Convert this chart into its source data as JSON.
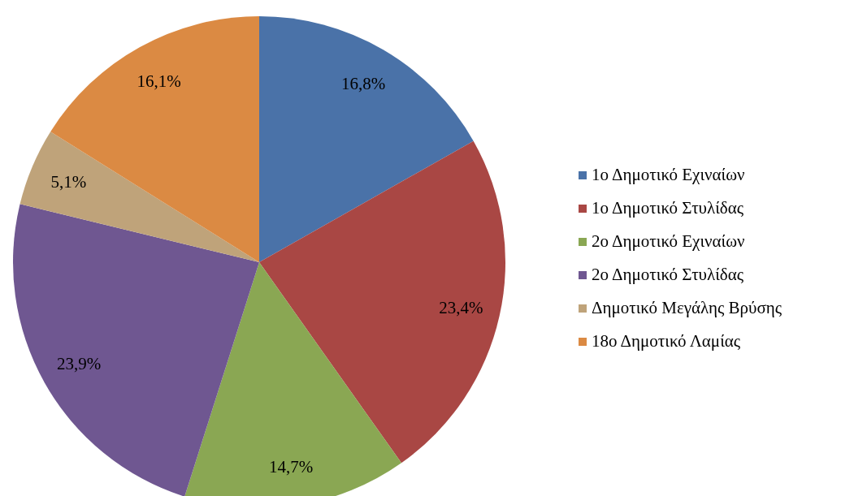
{
  "chart_data": {
    "type": "pie",
    "categories": [
      "1ο Δημοτικό Εχιναίων",
      "1ο Δημοτικό Στυλίδας",
      "2ο Δημοτικό Εχιναίων",
      "2ο Δημοτικό Στυλίδας",
      "Δημοτικό Μεγάλης Βρύσης",
      "18ο Δημοτικό Λαμίας"
    ],
    "values": [
      16.8,
      23.4,
      14.7,
      23.9,
      5.1,
      16.1
    ],
    "value_labels": [
      "16,8%",
      "23,4%",
      "14,7%",
      "23,9%",
      "5,1%",
      "16,1%"
    ],
    "colors": [
      "#4a72a8",
      "#a94744",
      "#8aa753",
      "#6f5791",
      "#bfa37a",
      "#db8a43"
    ],
    "legend": "right"
  }
}
